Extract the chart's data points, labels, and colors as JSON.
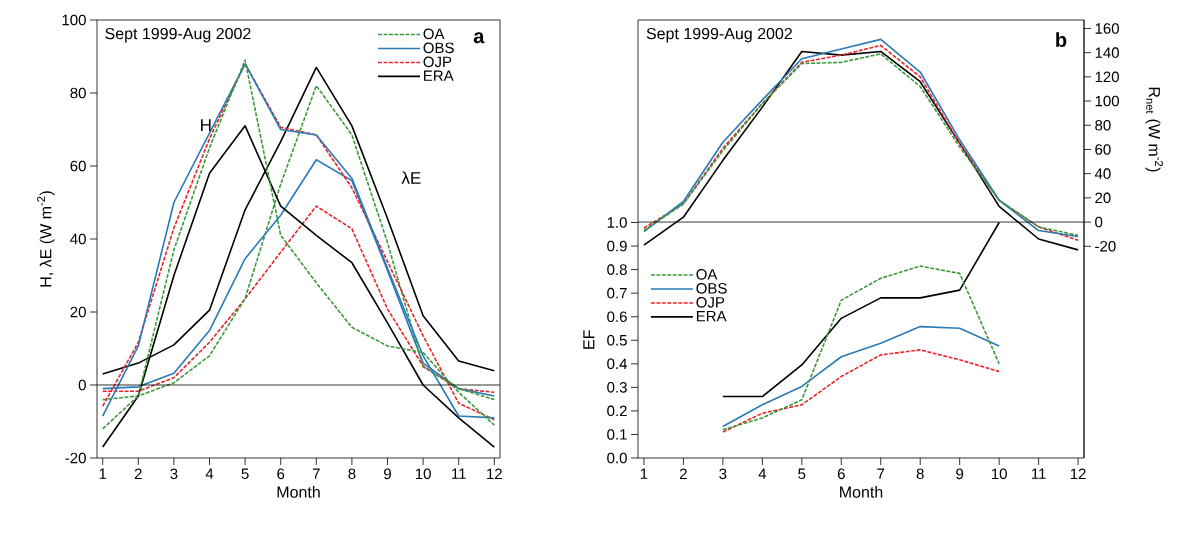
{
  "chart_data": [
    {
      "type": "line",
      "xlabel": "Month",
      "ylabel": "H, λE (W m$^{-2}$)",
      "annotations": [
        "Sept 1999-Aug 2002",
        "a",
        "H",
        "λE"
      ],
      "x": [
        1,
        2,
        3,
        4,
        5,
        6,
        7,
        8,
        9,
        10,
        11,
        12
      ],
      "xlim": [
        0.84,
        12.16
      ],
      "xticks": [
        1,
        2,
        3,
        4,
        5,
        6,
        7,
        8,
        9,
        10,
        11,
        12
      ],
      "ylim": [
        -20,
        100
      ],
      "yticks": [
        -20,
        0,
        20,
        40,
        60,
        80,
        100
      ],
      "legend": "top right",
      "ref_lines": [
        {
          "axis": "y",
          "value": 0
        }
      ],
      "series": [
        {
          "name": "OA",
          "color": "#3a9a3a",
          "line_style": "dashed",
          "values": [
            -12,
            -3,
            37,
            65,
            89,
            41,
            28,
            15.8,
            10.7,
            8.9,
            -2,
            -11
          ]
        },
        {
          "name": "OBS",
          "color": "#2a7ab8",
          "line_style": "solid",
          "values": [
            -8.5,
            10.7,
            50,
            69,
            88,
            70,
            68.5,
            56.6,
            32,
            8,
            -8.5,
            -9
          ]
        },
        {
          "name": "OJP",
          "color": "#e8242a",
          "line_style": "dashed",
          "values": [
            -5.8,
            11.7,
            43,
            67.5,
            88,
            70.6,
            68.5,
            54,
            33.8,
            13.5,
            -5,
            -9.5
          ]
        },
        {
          "name": "ERA",
          "color": "#000000",
          "line_style": "solid",
          "values": [
            -17,
            -3,
            30,
            58,
            71,
            49,
            41,
            33.5,
            17,
            0,
            -9,
            -17
          ]
        },
        {
          "color": "#3a9a3a",
          "line_style": "dashed",
          "values": [
            -4,
            -3,
            0.6,
            8,
            23.7,
            55,
            82,
            68.5,
            39,
            5,
            -1,
            -4
          ]
        },
        {
          "color": "#2a7ab8",
          "line_style": "solid",
          "values": [
            -1,
            -0.5,
            3.2,
            14.9,
            34.6,
            46.5,
            61.7,
            56,
            31.4,
            6,
            -1,
            -3
          ]
        },
        {
          "color": "#e8242a",
          "line_style": "dashed",
          "values": [
            -1.7,
            -1.7,
            2,
            11.7,
            23.6,
            36.4,
            49,
            42.8,
            20.8,
            5.2,
            -1,
            -2
          ]
        },
        {
          "color": "#000000",
          "line_style": "solid",
          "values": [
            3,
            6,
            11,
            20.5,
            48,
            66.7,
            87,
            71,
            45.6,
            19,
            6.6,
            3.9
          ]
        }
      ]
    },
    {
      "type": "line",
      "xlabel": "Month",
      "ylabel": "EF",
      "y2label": "R$_{net}$ (W m$^{-2}$)",
      "annotations": [
        "Sept 1999-Aug 2002",
        "b"
      ],
      "x": [
        1,
        2,
        3,
        4,
        5,
        6,
        7,
        8,
        9,
        10,
        11,
        12
      ],
      "xlim": [
        0.85,
        12.15
      ],
      "xticks": [
        1,
        2,
        3,
        4,
        5,
        6,
        7,
        8,
        9,
        10,
        11,
        12
      ],
      "ylim": [
        0,
        1.86
      ],
      "yticks": [
        {
          "value": 0,
          "label": "0.0"
        },
        {
          "value": 0.1,
          "label": "0.1"
        },
        {
          "value": 0.2,
          "label": "0.2"
        },
        {
          "value": 0.3,
          "label": "0.3"
        },
        {
          "value": 0.4,
          "label": "0.4"
        },
        {
          "value": 0.5,
          "label": "0.5"
        },
        {
          "value": 0.6,
          "label": "0.6"
        },
        {
          "value": 0.7,
          "label": "0.7"
        },
        {
          "value": 0.8,
          "label": "0.8"
        },
        {
          "value": 0.9,
          "label": "0.9"
        },
        {
          "value": 1,
          "label": "1.0"
        }
      ],
      "y2lim": [
        -195,
        167
      ],
      "y2ticks": [
        -20,
        0,
        20,
        40,
        60,
        80,
        100,
        120,
        140,
        160
      ],
      "legend": "left",
      "ref_lines": [
        {
          "axis": "y2",
          "value": 0
        }
      ],
      "series": [
        {
          "name": "OA",
          "color": "#3a9a3a",
          "line_style": "dashed",
          "values": [
            null,
            null,
            0.12,
            0.17,
            0.247,
            0.67,
            0.763,
            0.815,
            0.784,
            0.4,
            null,
            null
          ]
        },
        {
          "name": "OBS",
          "color": "#2a7ab8",
          "line_style": "solid",
          "values": [
            null,
            null,
            0.134,
            0.226,
            0.304,
            0.43,
            0.487,
            0.558,
            0.551,
            0.476,
            null,
            null
          ]
        },
        {
          "name": "OJP",
          "color": "#e8242a",
          "line_style": "dashed",
          "values": [
            null,
            null,
            0.11,
            0.19,
            0.226,
            0.346,
            0.438,
            0.459,
            0.417,
            0.367,
            null,
            null
          ]
        },
        {
          "name": "ERA",
          "color": "#000000",
          "line_style": "solid",
          "values": [
            null,
            null,
            0.261,
            0.261,
            0.395,
            0.593,
            0.68,
            0.68,
            0.713,
            1.0,
            null,
            null
          ]
        },
        {
          "axis": "y2",
          "color": "#3a9a3a",
          "line_style": "dashed",
          "values": [
            -7,
            15,
            59,
            98,
            131,
            132,
            139,
            112,
            62,
            18,
            -4,
            -11
          ]
        },
        {
          "axis": "y2",
          "color": "#2a7ab8",
          "line_style": "solid",
          "values": [
            -8,
            17,
            66,
            101,
            135,
            143,
            151,
            124,
            68,
            18,
            -7,
            -12
          ]
        },
        {
          "axis": "y2",
          "color": "#e8242a",
          "line_style": "dashed",
          "values": [
            -5,
            15,
            61,
            98,
            132,
            138,
            146,
            120,
            65,
            18,
            -4,
            -15
          ]
        },
        {
          "axis": "y2",
          "color": "#000000",
          "line_style": "solid",
          "values": [
            -19,
            4,
            51,
            95,
            141,
            138,
            141,
            116,
            65,
            13,
            -14,
            -23
          ]
        }
      ]
    }
  ]
}
